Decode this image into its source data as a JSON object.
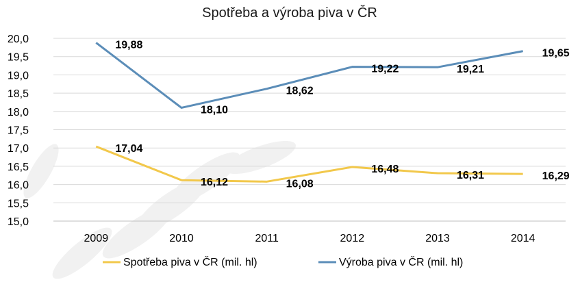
{
  "chart_data": {
    "type": "line",
    "title": "Spotřeba a výroba piva v ČR",
    "categories": [
      "2009",
      "2010",
      "2011",
      "2012",
      "2013",
      "2014"
    ],
    "ylim": [
      15.0,
      20.0
    ],
    "ytick_labels": [
      "15,0",
      "15,5",
      "16,0",
      "16,5",
      "17,0",
      "17,5",
      "18,0",
      "18,5",
      "19,0",
      "19,5",
      "20,0"
    ],
    "grid": true,
    "legend_position": "bottom",
    "series": [
      {
        "name": "Spotřeba piva v ČR (mil. hl)",
        "color": "#f2c84b",
        "values": [
          17.04,
          16.12,
          16.08,
          16.48,
          16.31,
          16.29
        ],
        "labels": [
          "17,04",
          "16,12",
          "16,08",
          "16,48",
          "16,31",
          "16,29"
        ]
      },
      {
        "name": "Výroba piva v ČR (mil. hl)",
        "color": "#5b8db8",
        "values": [
          19.88,
          18.1,
          18.62,
          19.22,
          19.21,
          19.65
        ],
        "labels": [
          "19,88",
          "18,10",
          "18,62",
          "19,22",
          "19,21",
          "19,65"
        ]
      }
    ]
  }
}
